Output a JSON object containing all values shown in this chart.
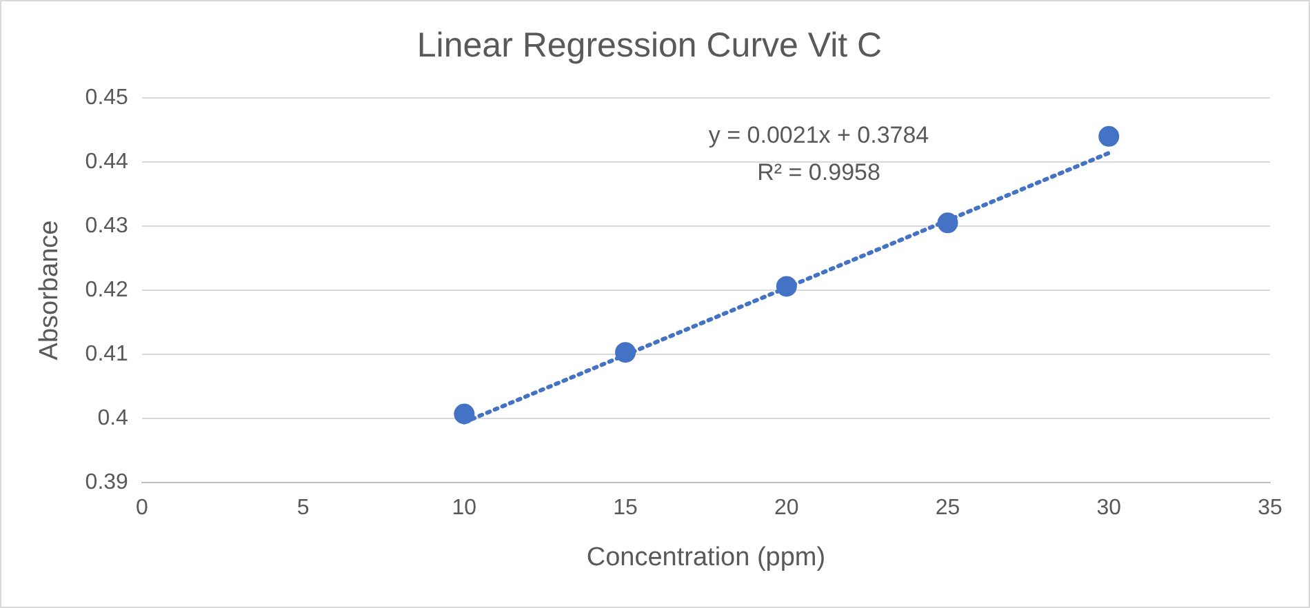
{
  "chart_data": {
    "type": "scatter",
    "title": "Linear Regression Curve Vit C",
    "xlabel": "Concentration (ppm)",
    "ylabel": "Absorbance",
    "annotations": [
      "y = 0.0021x + 0.3784",
      "R² = 0.9958"
    ],
    "x": [
      10,
      15,
      20,
      25,
      30
    ],
    "series": [
      {
        "color": "#4472c4",
        "values": [
          0.4007,
          0.4103,
          0.4206,
          0.4305,
          0.444
        ],
        "marker": "circle"
      },
      {
        "type": "line",
        "color": "#4472c4",
        "x": [
          10,
          30
        ],
        "values": [
          0.3994,
          0.4414
        ],
        "marker": "none",
        "line_style": "dotted"
      }
    ],
    "xlim": [
      0,
      35
    ],
    "xticks": [
      0,
      5,
      10,
      15,
      20,
      25,
      30,
      35
    ],
    "ylim": [
      0.39,
      0.45
    ],
    "yticks": [
      0.39,
      0.4,
      0.41,
      0.42,
      0.43,
      0.44,
      0.45
    ],
    "grid": "y",
    "legend": false
  }
}
